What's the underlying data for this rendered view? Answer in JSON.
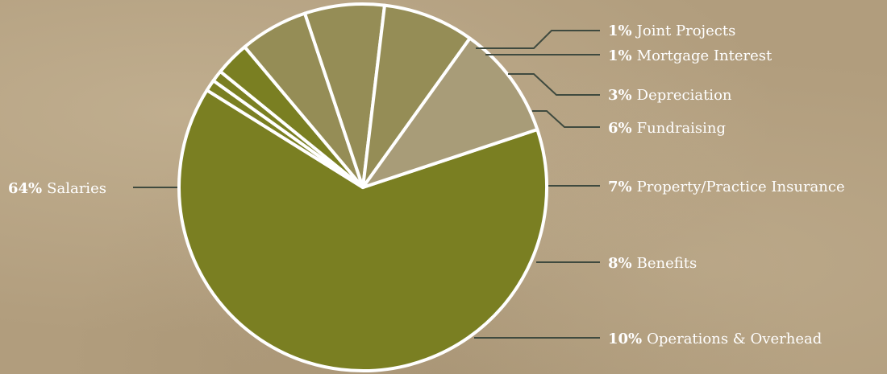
{
  "chart_data": {
    "type": "pie",
    "colors": {
      "primary": "#7a7f22",
      "secondary": "#958d56",
      "tertiary": "#a89c78",
      "slice_border": "#ffffff",
      "leader_line": "#3f4a3f"
    },
    "slices": [
      {
        "pct": "64%",
        "label": "Salaries",
        "value": 64,
        "color": "#7a7f22"
      },
      {
        "pct": "1%",
        "label": "Joint Projects",
        "value": 1,
        "color": "#7a7f22"
      },
      {
        "pct": "1%",
        "label": "Mortgage Interest",
        "value": 1,
        "color": "#7a7f22"
      },
      {
        "pct": "3%",
        "label": "Depreciation",
        "value": 3,
        "color": "#7a7f22"
      },
      {
        "pct": "6%",
        "label": "Fundraising",
        "value": 6,
        "color": "#958d56"
      },
      {
        "pct": "7%",
        "label": "Property/Practice Insurance",
        "value": 7,
        "color": "#958d56"
      },
      {
        "pct": "8%",
        "label": "Benefits",
        "value": 8,
        "color": "#958d56"
      },
      {
        "pct": "10%",
        "label": "Operations & Overhead",
        "value": 10,
        "color": "#a89c78"
      }
    ]
  }
}
